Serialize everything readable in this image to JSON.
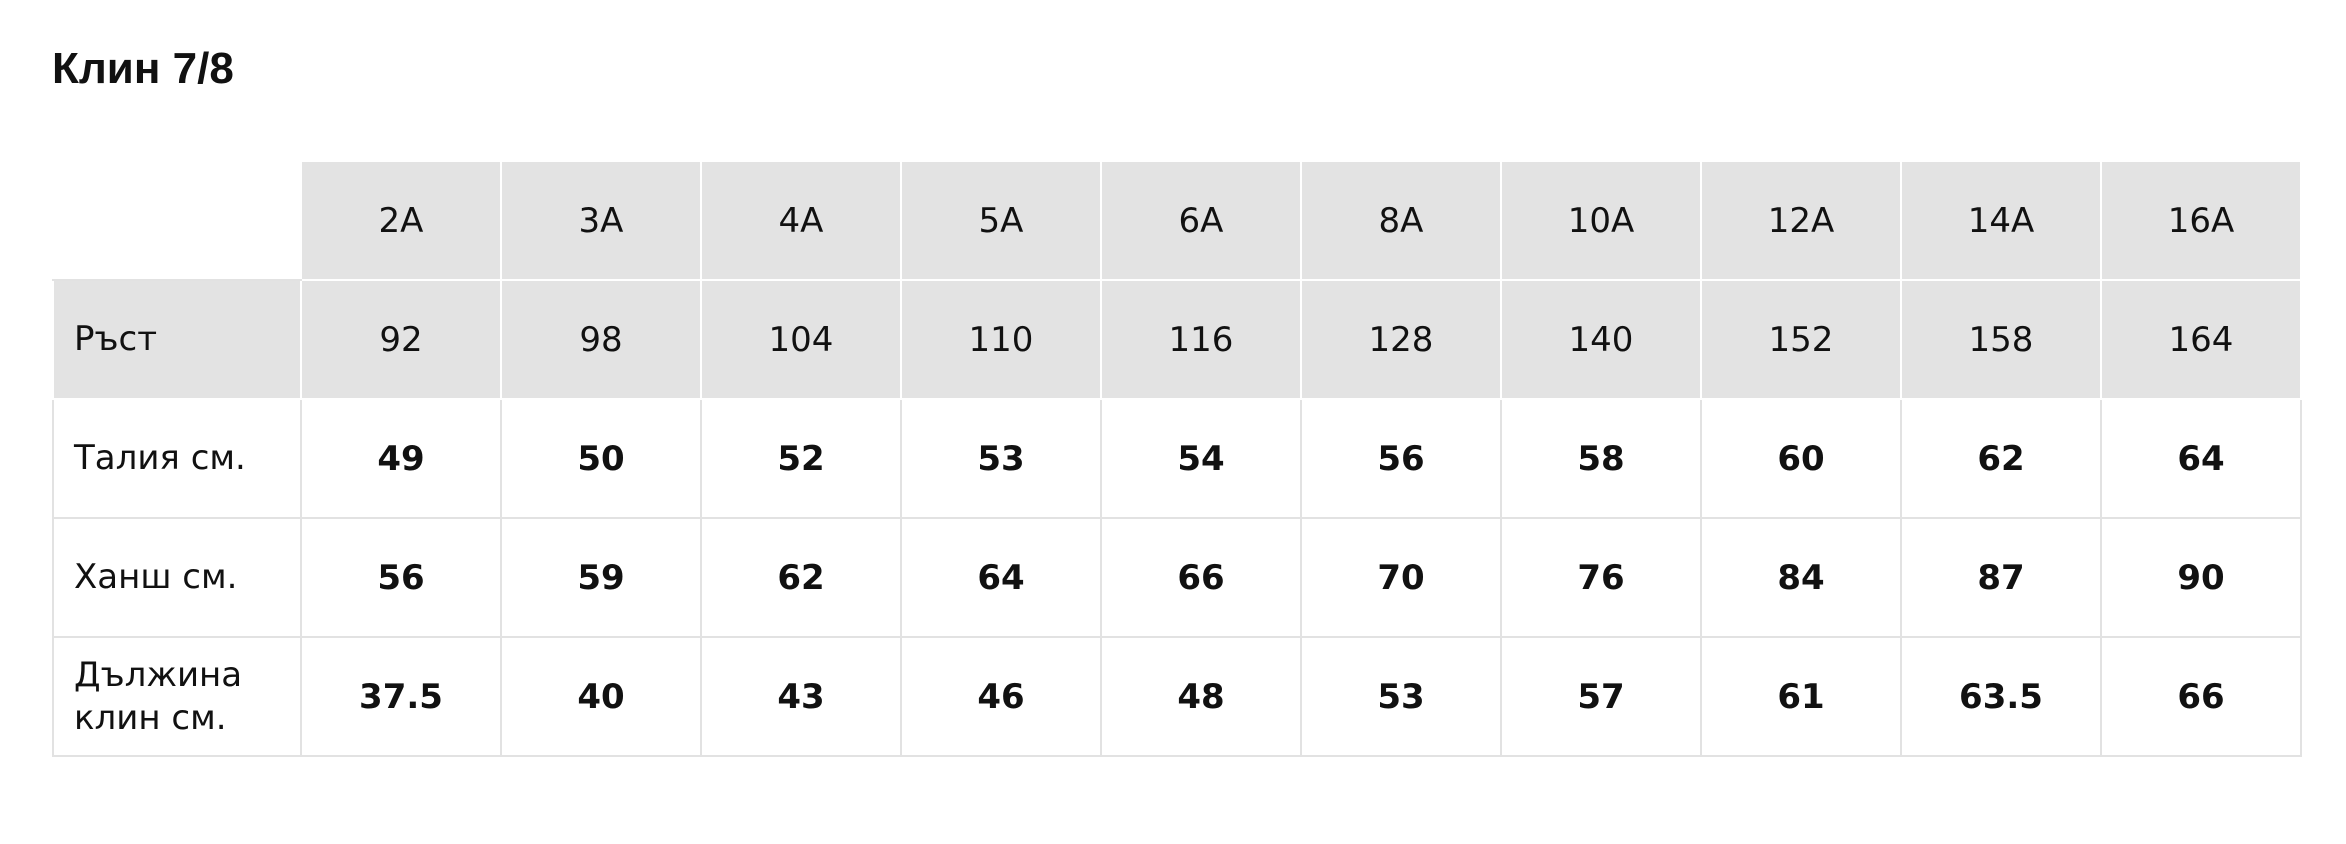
{
  "header": {
    "title": "Клин 7/8"
  },
  "table": {
    "columns": [
      "2A",
      "3A",
      "4A",
      "5A",
      "6A",
      "8A",
      "10A",
      "12A",
      "14A",
      "16A"
    ],
    "rows": [
      {
        "label": "Ръст",
        "values": [
          92,
          98,
          104,
          110,
          116,
          128,
          140,
          152,
          158,
          164
        ]
      },
      {
        "label": "Талия см.",
        "values": [
          49,
          50,
          52,
          53,
          54,
          56,
          58,
          60,
          62,
          64
        ]
      },
      {
        "label": "Ханш см.",
        "values": [
          56,
          59,
          62,
          64,
          66,
          70,
          76,
          84,
          87,
          90
        ]
      },
      {
        "label": "Дължина клин см.",
        "values": [
          37.5,
          40,
          43,
          46,
          48,
          53,
          57,
          61,
          63.5,
          66
        ]
      }
    ]
  }
}
